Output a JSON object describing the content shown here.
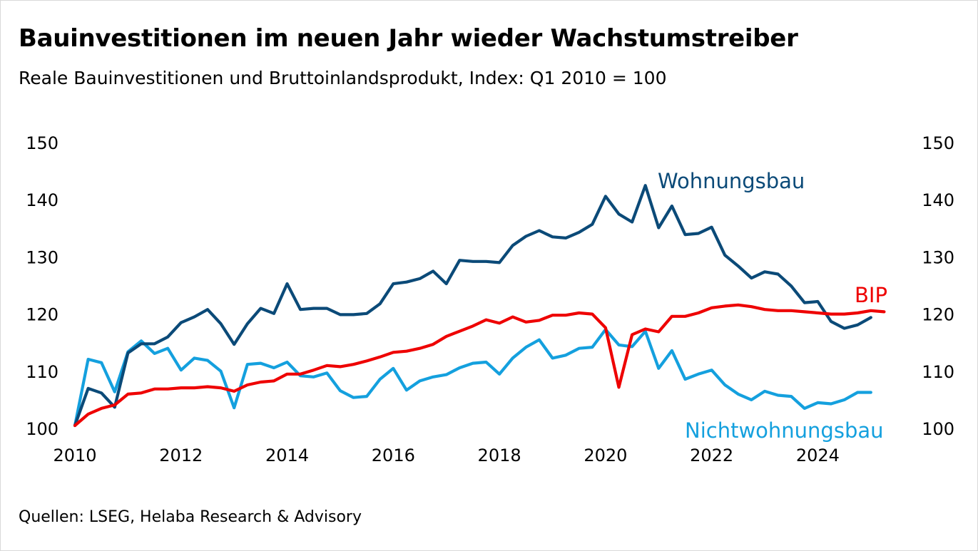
{
  "title": "Bauinvestitionen im neuen Jahr wieder Wachstumstreiber",
  "subtitle": "Reale Bauinvestitionen und Bruttoinlandsprodukt, Index: Q1 2010 = 100",
  "source": "Quellen: LSEG, Helaba Research & Advisory",
  "colors": {
    "wohnungsbau": "#0b4a78",
    "nichtwohnungsbau": "#14a0de",
    "bip": "#ee0000",
    "text": "#000000"
  },
  "chart_data": {
    "type": "line",
    "title": "Bauinvestitionen im neuen Jahr wieder Wachstumstreiber",
    "ylabel": "",
    "xlabel": "",
    "ylim": [
      100,
      150
    ],
    "xlim": [
      2010.0,
      2025.5
    ],
    "yticks": [
      100,
      110,
      120,
      130,
      140,
      150
    ],
    "xticks": [
      2010,
      2012,
      2014,
      2016,
      2018,
      2020,
      2022,
      2024
    ],
    "x_start": 2010.0,
    "x_step": 0.25,
    "series": [
      {
        "name": "Wohnungsbau",
        "color_key": "wohnungsbau",
        "values": [
          100.5,
          107.0,
          106.2,
          103.7,
          113.2,
          114.8,
          114.8,
          116.0,
          118.5,
          119.5,
          120.8,
          118.3,
          114.7,
          118.3,
          121.0,
          120.1,
          125.3,
          120.8,
          121.0,
          121.0,
          119.9,
          119.9,
          120.1,
          121.8,
          125.3,
          125.6,
          126.2,
          127.5,
          125.3,
          129.4,
          129.2,
          129.2,
          129.0,
          132.0,
          133.6,
          134.6,
          133.5,
          133.3,
          134.3,
          135.7,
          140.6,
          137.5,
          136.1,
          142.5,
          135.1,
          138.9,
          133.9,
          134.1,
          135.2,
          130.3,
          128.4,
          126.3,
          127.4,
          127.0,
          124.9,
          122.0,
          122.2,
          118.7,
          117.5,
          118.1,
          119.4
        ]
      },
      {
        "name": "Nichtwohnungsbau",
        "color_key": "nichtwohnungsbau",
        "values": [
          100.5,
          112.1,
          111.5,
          106.4,
          113.4,
          115.3,
          113.1,
          114.0,
          110.2,
          112.3,
          111.9,
          110.0,
          103.6,
          111.2,
          111.4,
          110.6,
          111.6,
          109.2,
          109.0,
          109.7,
          106.6,
          105.4,
          105.6,
          108.6,
          110.5,
          106.7,
          108.3,
          109.0,
          109.4,
          110.6,
          111.4,
          111.6,
          109.5,
          112.3,
          114.2,
          115.5,
          112.3,
          112.8,
          114.0,
          114.2,
          117.3,
          114.6,
          114.3,
          117.0,
          110.5,
          113.6,
          108.6,
          109.5,
          110.2,
          107.6,
          106.0,
          105.0,
          106.5,
          105.8,
          105.6,
          103.5,
          104.5,
          104.3,
          105.0,
          106.3,
          106.3
        ]
      },
      {
        "name": "BIP",
        "color_key": "bip",
        "values": [
          100.5,
          102.5,
          103.5,
          104.1,
          106.0,
          106.2,
          106.9,
          106.9,
          107.1,
          107.1,
          107.3,
          107.1,
          106.5,
          107.6,
          108.1,
          108.3,
          109.5,
          109.5,
          110.2,
          111.0,
          110.8,
          111.2,
          111.8,
          112.5,
          113.3,
          113.5,
          114.0,
          114.7,
          116.1,
          117.0,
          117.9,
          119.0,
          118.4,
          119.5,
          118.6,
          118.9,
          119.8,
          119.8,
          120.2,
          120.0,
          117.6,
          107.2,
          116.4,
          117.4,
          116.9,
          119.6,
          119.6,
          120.2,
          121.1,
          121.4,
          121.6,
          121.3,
          120.8,
          120.6,
          120.6,
          120.4,
          120.2,
          120.0,
          120.0,
          120.2,
          120.6,
          120.4
        ]
      }
    ],
    "series_labels": [
      "Wohnungsbau",
      "Nichtwohnungsbau",
      "BIP"
    ],
    "legend": "inline labels next to lines"
  }
}
